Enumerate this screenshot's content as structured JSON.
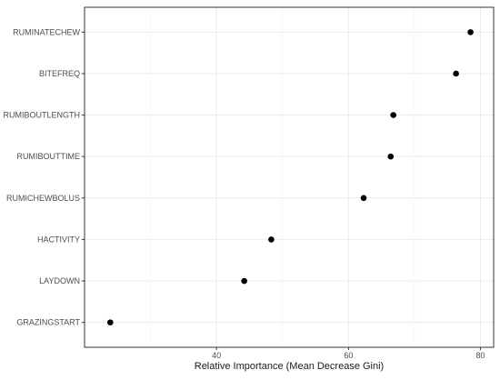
{
  "chart_data": {
    "type": "scatter",
    "title": "",
    "xlabel": "Relative Importance (Mean Decrease Gini)",
    "ylabel": "",
    "xlim": [
      20,
      82
    ],
    "xticks": [
      40,
      60,
      80
    ],
    "grid": true,
    "legend": "none",
    "categories": [
      "RUMINATECHEW",
      "BITEFREQ",
      "RUMIBOUTLENGTH",
      "RUMIBOUTTIME",
      "RUMICHEWBOLUS",
      "HACTIVITY",
      "LAYDOWN",
      "GRAZINGSTART"
    ],
    "values": [
      78.5,
      76.3,
      66.8,
      66.4,
      62.3,
      48.3,
      44.2,
      23.9
    ],
    "point_color": "#000000"
  }
}
